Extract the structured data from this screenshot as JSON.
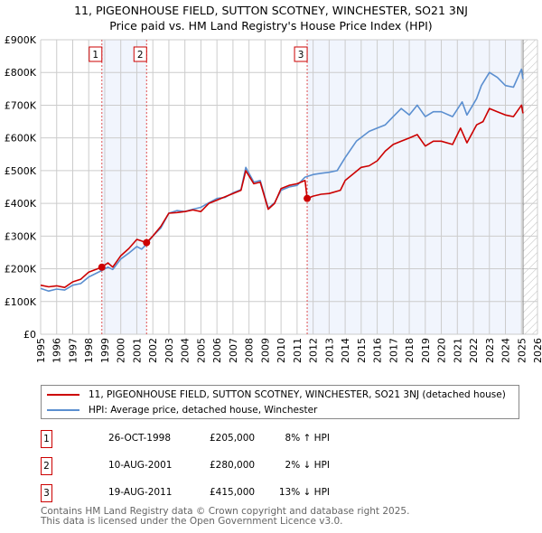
{
  "title_line1": "11, PIGEONHOUSE FIELD, SUTTON SCOTNEY, WINCHESTER, SO21 3NJ",
  "title_line2": "Price paid vs. HM Land Registry's House Price Index (HPI)",
  "chart_data": {
    "type": "line",
    "title": "11, PIGEONHOUSE FIELD, SUTTON SCOTNEY, WINCHESTER, SO21 3NJ — Price paid vs. HM Land Registry's House Price Index (HPI)",
    "xlim": [
      1995,
      2026
    ],
    "ylim": [
      0,
      900000
    ],
    "x_ticks": [
      "1995",
      "1996",
      "1997",
      "1998",
      "1999",
      "2000",
      "2001",
      "2002",
      "2003",
      "2004",
      "2005",
      "2006",
      "2007",
      "2008",
      "2009",
      "2010",
      "2011",
      "2012",
      "2013",
      "2014",
      "2015",
      "2016",
      "2017",
      "2018",
      "2019",
      "2020",
      "2021",
      "2022",
      "2023",
      "2024",
      "2025",
      "2026"
    ],
    "y_ticks": [
      {
        "v": 0,
        "label": "£0"
      },
      {
        "v": 100000,
        "label": "£100K"
      },
      {
        "v": 200000,
        "label": "£200K"
      },
      {
        "v": 300000,
        "label": "£300K"
      },
      {
        "v": 400000,
        "label": "£400K"
      },
      {
        "v": 500000,
        "label": "£500K"
      },
      {
        "v": 600000,
        "label": "£600K"
      },
      {
        "v": 700000,
        "label": "£700K"
      },
      {
        "v": 800000,
        "label": "£800K"
      },
      {
        "v": 900000,
        "label": "£900K"
      }
    ],
    "grid": true,
    "series": [
      {
        "name": "11, PIGEONHOUSE FIELD, SUTTON SCOTNEY, WINCHESTER, SO21 3NJ (detached house)",
        "color": "#cc0000",
        "x": [
          1995,
          1995.5,
          1996,
          1996.5,
          1997,
          1997.5,
          1998,
          1998.82,
          1999.2,
          1999.5,
          2000,
          2000.5,
          2001,
          2001.3,
          2001.6,
          2002,
          2002.5,
          2003,
          2003.5,
          2004,
          2004.5,
          2005,
          2005.5,
          2006,
          2006.5,
          2007,
          2007.5,
          2007.8,
          2008.3,
          2008.7,
          2009.2,
          2009.6,
          2010,
          2010.5,
          2011,
          2011.5,
          2011.63,
          2012,
          2012.5,
          2013,
          2013.7,
          2014,
          2014.5,
          2015,
          2015.5,
          2016,
          2016.5,
          2017,
          2017.5,
          2018,
          2018.5,
          2019,
          2019.5,
          2020,
          2020.7,
          2021.2,
          2021.6,
          2022.2,
          2022.6,
          2023,
          2023.5,
          2024,
          2024.5,
          2025,
          2025.1
        ],
        "y": [
          150000,
          145000,
          148000,
          143000,
          160000,
          168000,
          190000,
          205000,
          218000,
          205000,
          240000,
          262000,
          290000,
          285000,
          280000,
          300000,
          330000,
          370000,
          372000,
          375000,
          380000,
          375000,
          400000,
          410000,
          420000,
          430000,
          440000,
          500000,
          460000,
          465000,
          382000,
          400000,
          445000,
          455000,
          460000,
          470000,
          415000,
          422000,
          428000,
          430000,
          440000,
          470000,
          490000,
          510000,
          515000,
          530000,
          560000,
          580000,
          590000,
          600000,
          610000,
          575000,
          590000,
          590000,
          580000,
          630000,
          585000,
          640000,
          650000,
          690000,
          680000,
          670000,
          665000,
          700000,
          675000
        ]
      },
      {
        "name": "HPI: Average price, detached house, Winchester",
        "color": "#5b8fd0",
        "x": [
          1995,
          1995.5,
          1996,
          1996.5,
          1997,
          1997.5,
          1998,
          1998.82,
          1999.2,
          1999.5,
          2000,
          2000.5,
          2001,
          2001.3,
          2001.6,
          2002,
          2002.5,
          2003,
          2003.5,
          2004,
          2004.5,
          2005,
          2005.5,
          2006,
          2006.5,
          2007,
          2007.5,
          2007.8,
          2008.3,
          2008.7,
          2009.2,
          2009.6,
          2010,
          2010.5,
          2011,
          2011.5,
          2012,
          2012.5,
          2013,
          2013.5,
          2014,
          2014.7,
          2015.5,
          2016,
          2016.5,
          2017,
          2017.5,
          2018,
          2018.5,
          2019,
          2019.5,
          2020,
          2020.7,
          2021.3,
          2021.6,
          2022.2,
          2022.5,
          2023,
          2023.5,
          2024,
          2024.5,
          2025,
          2025.1
        ],
        "y": [
          140000,
          132000,
          138000,
          135000,
          150000,
          155000,
          175000,
          195000,
          205000,
          198000,
          230000,
          248000,
          268000,
          260000,
          275000,
          300000,
          325000,
          370000,
          378000,
          375000,
          382000,
          388000,
          402000,
          415000,
          418000,
          432000,
          442000,
          510000,
          465000,
          470000,
          385000,
          402000,
          440000,
          450000,
          455000,
          480000,
          488000,
          492000,
          495000,
          500000,
          540000,
          590000,
          620000,
          630000,
          640000,
          665000,
          690000,
          670000,
          700000,
          665000,
          680000,
          680000,
          665000,
          710000,
          670000,
          720000,
          760000,
          800000,
          785000,
          760000,
          755000,
          810000,
          780000
        ]
      }
    ],
    "sales": [
      {
        "n": "1",
        "x": 1998.82,
        "y": 205000
      },
      {
        "n": "2",
        "x": 2001.61,
        "y": 280000
      },
      {
        "n": "3",
        "x": 2011.63,
        "y": 415000
      }
    ],
    "shaded_ranges": [
      [
        1998.82,
        2001.61
      ],
      [
        2011.63,
        2025.0
      ]
    ],
    "forecast_hatch_from": 2025.1,
    "legend_placement": "below"
  },
  "legend": {
    "property": "11, PIGEONHOUSE FIELD, SUTTON SCOTNEY, WINCHESTER, SO21 3NJ (detached house)",
    "hpi": "HPI: Average price, detached house, Winchester"
  },
  "transactions": [
    {
      "n": "1",
      "date": "26-OCT-1998",
      "price": "£205,000",
      "delta": "8% ↑ HPI"
    },
    {
      "n": "2",
      "date": "10-AUG-2001",
      "price": "£280,000",
      "delta": "2% ↓ HPI"
    },
    {
      "n": "3",
      "date": "19-AUG-2011",
      "price": "£415,000",
      "delta": "13% ↓ HPI"
    }
  ],
  "footer": {
    "line1": "Contains HM Land Registry data © Crown copyright and database right 2025.",
    "line2": "This data is licensed under the Open Government Licence v3.0."
  }
}
